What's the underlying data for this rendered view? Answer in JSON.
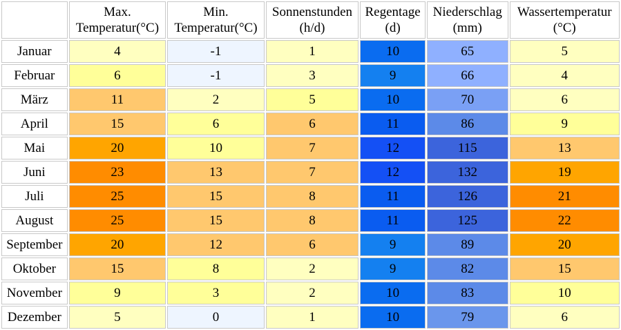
{
  "headers": [
    {
      "line1": "Max.",
      "line2": "Temperatur(°C)"
    },
    {
      "line1": "Min.",
      "line2": "Temperatur(°C)"
    },
    {
      "line1": "Sonnenstunden",
      "line2": "(h/d)"
    },
    {
      "line1": "Regentage",
      "line2": "(d)"
    },
    {
      "line1": "Niederschlag",
      "line2": "(mm)"
    },
    {
      "line1": "Wassertemperatur",
      "line2": "(°C)"
    }
  ],
  "rows": [
    {
      "month": "Januar",
      "max": "4",
      "min": "-1",
      "sun": "1",
      "rain_days": "10",
      "precip": "65",
      "water": "5"
    },
    {
      "month": "Februar",
      "max": "6",
      "min": "-1",
      "sun": "3",
      "rain_days": "9",
      "precip": "66",
      "water": "4"
    },
    {
      "month": "März",
      "max": "11",
      "min": "2",
      "sun": "5",
      "rain_days": "10",
      "precip": "70",
      "water": "6"
    },
    {
      "month": "April",
      "max": "15",
      "min": "6",
      "sun": "6",
      "rain_days": "11",
      "precip": "86",
      "water": "9"
    },
    {
      "month": "Mai",
      "max": "20",
      "min": "10",
      "sun": "7",
      "rain_days": "12",
      "precip": "115",
      "water": "13"
    },
    {
      "month": "Juni",
      "max": "23",
      "min": "13",
      "sun": "7",
      "rain_days": "12",
      "precip": "132",
      "water": "19"
    },
    {
      "month": "Juli",
      "max": "25",
      "min": "15",
      "sun": "8",
      "rain_days": "11",
      "precip": "126",
      "water": "21"
    },
    {
      "month": "August",
      "max": "25",
      "min": "15",
      "sun": "8",
      "rain_days": "11",
      "precip": "125",
      "water": "22"
    },
    {
      "month": "September",
      "max": "20",
      "min": "12",
      "sun": "6",
      "rain_days": "9",
      "precip": "89",
      "water": "20"
    },
    {
      "month": "Oktober",
      "max": "15",
      "min": "8",
      "sun": "2",
      "rain_days": "9",
      "precip": "82",
      "water": "15"
    },
    {
      "month": "November",
      "max": "9",
      "min": "3",
      "sun": "2",
      "rain_days": "10",
      "precip": "83",
      "water": "10"
    },
    {
      "month": "Dezember",
      "max": "5",
      "min": "0",
      "sun": "1",
      "rain_days": "10",
      "precip": "79",
      "water": "6"
    }
  ],
  "cell_colors": {
    "max": [
      "#ffffc0",
      "#ffff99",
      "#ffc86e",
      "#ffc86e",
      "#ffa500",
      "#ff8c00",
      "#ff8c00",
      "#ff8c00",
      "#ffa500",
      "#ffc86e",
      "#ffff99",
      "#ffffc0"
    ],
    "min": [
      "#eef5ff",
      "#eef5ff",
      "#ffffc0",
      "#ffff99",
      "#ffff99",
      "#ffc86e",
      "#ffc86e",
      "#ffc86e",
      "#ffc86e",
      "#ffff99",
      "#ffff99",
      "#eef5ff"
    ],
    "sun": [
      "#ffffc0",
      "#ffffc0",
      "#ffff99",
      "#ffc86e",
      "#ffc86e",
      "#ffc86e",
      "#ffc86e",
      "#ffc86e",
      "#ffc86e",
      "#ffffc0",
      "#ffffc0",
      "#ffffc0"
    ],
    "rain_days": [
      "#0a6cf0",
      "#1480f0",
      "#0a6cf0",
      "#0a5cf0",
      "#1450f5",
      "#1450f5",
      "#0a5cf0",
      "#0a5cf0",
      "#1480f0",
      "#1480f0",
      "#0a6cf0",
      "#0a6cf0"
    ],
    "precip": [
      "#8fb0ff",
      "#8fb0ff",
      "#7aa0f5",
      "#5c8ae8",
      "#3c64dc",
      "#3c64dc",
      "#3c64dc",
      "#3c64dc",
      "#5c8ae8",
      "#5c8ae8",
      "#5c8ae8",
      "#6a96ec"
    ],
    "water": [
      "#ffffc0",
      "#ffffc0",
      "#ffffc0",
      "#ffff99",
      "#ffc86e",
      "#ffa500",
      "#ff8c00",
      "#ff8c00",
      "#ffa500",
      "#ffc86e",
      "#ffff99",
      "#ffffc0"
    ]
  }
}
